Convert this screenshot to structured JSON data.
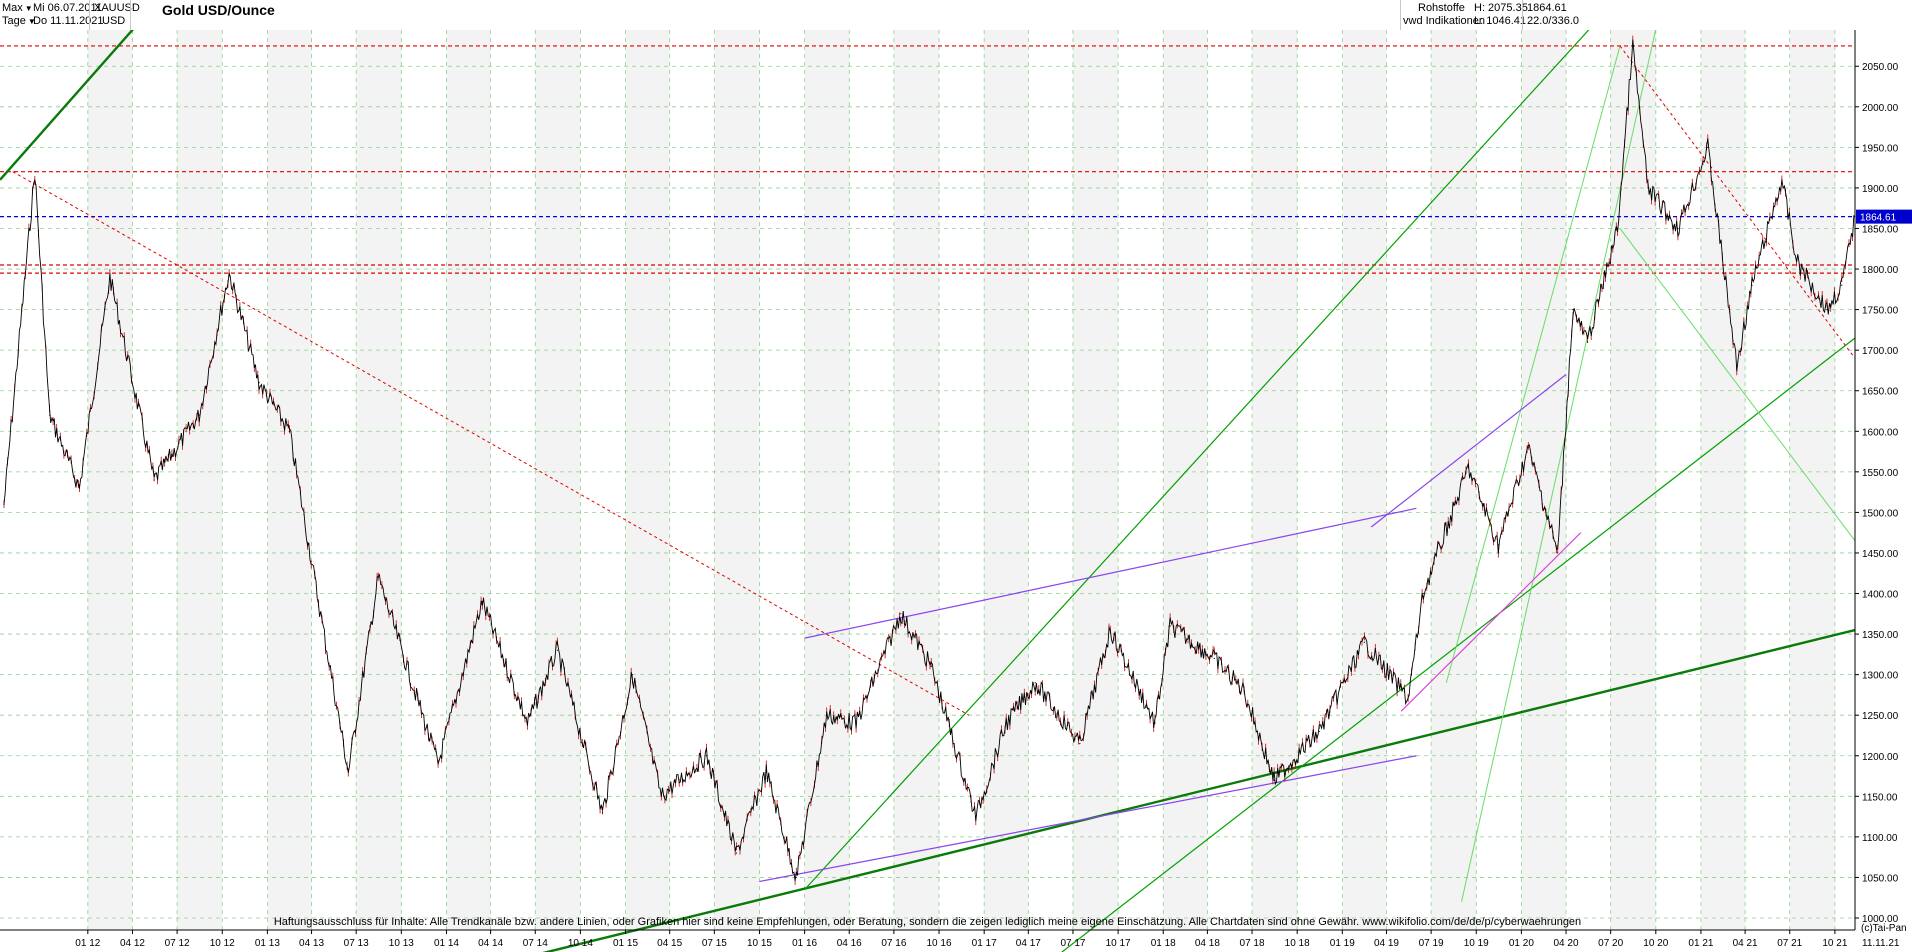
{
  "header": {
    "range_label": "Max",
    "interval_label": "Tage",
    "date_from": "Mi 06.07.2011",
    "date_to": "Do 11.11.2021",
    "symbol": "XAUUSD",
    "currency": "USD",
    "title": "Gold USD/Ounce",
    "category": "Rohstoffe",
    "source": "vwd Indikationen",
    "high": "H: 2075.35",
    "low": "L: 1046.41",
    "last_price": "1864.61",
    "last_change": "22.0/336.0"
  },
  "footer": {
    "disclaimer": "Haftungsausschluss für Inhalte: Alle Trendkanäle bzw. andere Linien, oder Grafiken hier sind keine Empfehlungen, oder Beratung, sondern die zeigen lediglich meine eigene Einschätzung. Alle Chartdaten sind ohne Gewähr.  www.wikifolio.com/de/de/p/cyberwaehrungen",
    "copyright": "(c)Tai-Pan",
    "end_date": "11.11.21"
  },
  "colors": {
    "price": "#000000",
    "price_accent": "#d00000",
    "trend_major": "#0a7a0a",
    "trend_minor": "#00a000",
    "trend_light": "#66dd66",
    "channel": "#8844ee",
    "channel_pink": "#dd44dd",
    "resistance": "#e00000",
    "last_price_line": "#0000ee",
    "last_price_box": "#0000cc",
    "grid": "#8fd08f",
    "band": "#f3f3f3"
  },
  "chart_data": {
    "type": "line",
    "title": "Gold USD/Ounce",
    "series": [
      {
        "name": "XAUUSD",
        "x": [
          "07.2011",
          "09.2011",
          "10.2011",
          "12.2011",
          "02.2012",
          "05.2012",
          "08.2012",
          "10.2012",
          "12.2012",
          "02.2013",
          "04.2013",
          "06.2013",
          "08.2013",
          "12.2013",
          "03.2014",
          "06.2014",
          "08.2014",
          "11.2014",
          "01.2015",
          "03.2015",
          "06.2015",
          "08.2015",
          "10.2015",
          "12.2015",
          "02.2016",
          "04.2016",
          "07.2016",
          "09.2016",
          "12.2016",
          "02.2017",
          "04.2017",
          "07.2017",
          "09.2017",
          "12.2017",
          "01.2018",
          "04.2018",
          "06.2018",
          "08.2018",
          "11.2018",
          "02.2019",
          "05.2019",
          "06.2019",
          "09.2019",
          "11.2019",
          "01.2020",
          "03.2020",
          "04.2020",
          "05.2020",
          "07.2020",
          "08.2020",
          "09.2020",
          "11.2020",
          "01.2021",
          "03.2021",
          "04.2021",
          "06.2021",
          "07.2021",
          "09.2021",
          "10.2021",
          "11.2021"
        ],
        "values": [
          1510,
          1920,
          1620,
          1530,
          1790,
          1540,
          1620,
          1795,
          1660,
          1600,
          1390,
          1180,
          1420,
          1190,
          1390,
          1240,
          1330,
          1130,
          1300,
          1150,
          1200,
          1080,
          1180,
          1050,
          1250,
          1240,
          1375,
          1310,
          1125,
          1240,
          1290,
          1215,
          1355,
          1240,
          1360,
          1320,
          1280,
          1170,
          1230,
          1340,
          1270,
          1400,
          1555,
          1460,
          1580,
          1450,
          1750,
          1710,
          1850,
          2075,
          1900,
          1850,
          1950,
          1680,
          1780,
          1910,
          1810,
          1750,
          1780,
          1864.61
        ]
      }
    ],
    "xlabel": "",
    "ylabel": "",
    "ylim": [
      1000,
      2075.35
    ],
    "xlim": [
      "06.07.2011",
      "11.11.2021"
    ],
    "x_ticks": [
      "01.12",
      "04.12",
      "07.12",
      "10.12",
      "01.13",
      "04.13",
      "07.13",
      "10.13",
      "01.14",
      "04.14",
      "07.14",
      "10.14",
      "01.15",
      "04.15",
      "07.15",
      "10.15",
      "01.16",
      "04.16",
      "07.16",
      "10.16",
      "01.17",
      "04.17",
      "07.17",
      "10.17",
      "01.18",
      "04.18",
      "07.18",
      "10.18",
      "01.19",
      "04.19",
      "07.19",
      "10.19",
      "01.20",
      "04.20",
      "07.20",
      "10.20",
      "01.21",
      "04.21",
      "07.21",
      "10.21"
    ],
    "y_ticks": [
      1000,
      1050,
      1100,
      1150,
      1200,
      1250,
      1300,
      1350,
      1400,
      1450,
      1500,
      1550,
      1600,
      1650,
      1700,
      1750,
      1800,
      1850,
      1900,
      1950,
      2000,
      2050
    ],
    "y_tick_labels": [
      "1000.00",
      "1050.00",
      "1100.00",
      "1150.00",
      "1200.00",
      "1250.00",
      "1300.00",
      "1350.00",
      "1400.00",
      "1450.00",
      "1500.00",
      "1550.00",
      "1600.00",
      "1650.00",
      "1700.00",
      "1750.00",
      "1800.00",
      "1850.00",
      "1900.00",
      "1950.00",
      "2000.00",
      "2050.00"
    ],
    "grid": true,
    "legend": "none",
    "last_value": 1864.61,
    "horizontal_lines": [
      {
        "y": 2075,
        "kind": "resistance"
      },
      {
        "y": 1920,
        "kind": "resistance"
      },
      {
        "y": 1864.61,
        "kind": "last"
      },
      {
        "y": 1805,
        "kind": "resistance"
      },
      {
        "y": 1795,
        "kind": "resistance"
      }
    ],
    "trend_lines": [
      {
        "kind": "major",
        "from": [
          "06.07.2011",
          1910
        ],
        "to": [
          "01.10.2012",
          2220
        ]
      },
      {
        "kind": "major",
        "from": [
          "01.06.2014",
          950
        ],
        "to": [
          "11.11.2021",
          1355
        ]
      },
      {
        "kind": "minor",
        "from": [
          "01.05.2017",
          940
        ],
        "to": [
          "11.11.2021",
          1715
        ]
      },
      {
        "kind": "minor",
        "from": [
          "01.01.2016",
          1035
        ],
        "to": [
          "01.08.2020",
          2145
        ]
      },
      {
        "kind": "light",
        "from": [
          "01.09.2019",
          1020
        ],
        "to": [
          "01.11.2020",
          2180
        ]
      },
      {
        "kind": "light",
        "from": [
          "01.08.2019",
          1290
        ],
        "to": [
          "20.07.2020",
          2075
        ]
      },
      {
        "kind": "light",
        "from": [
          "20.07.2020",
          1850
        ],
        "to": [
          "11.11.2021",
          1465
        ]
      },
      {
        "kind": "channel",
        "from": [
          "01.10.2015",
          1045
        ],
        "to": [
          "01.06.2019",
          1200
        ]
      },
      {
        "kind": "channel",
        "from": [
          "01.01.2016",
          1345
        ],
        "to": [
          "01.06.2019",
          1505
        ]
      },
      {
        "kind": "channel",
        "from": [
          "01.03.2019",
          1482
        ],
        "to": [
          "01.04.2020",
          1670
        ]
      },
      {
        "kind": "pink",
        "from": [
          "01.05.2019",
          1255
        ],
        "to": [
          "01.05.2020",
          1475
        ]
      },
      {
        "kind": "resistance",
        "from": [
          "01.08.2011",
          1920
        ],
        "to": [
          "01.12.2016",
          1250
        ]
      },
      {
        "kind": "resistance",
        "from": [
          "20.07.2020",
          2075
        ],
        "to": [
          "11.11.2021",
          1690
        ]
      }
    ]
  }
}
